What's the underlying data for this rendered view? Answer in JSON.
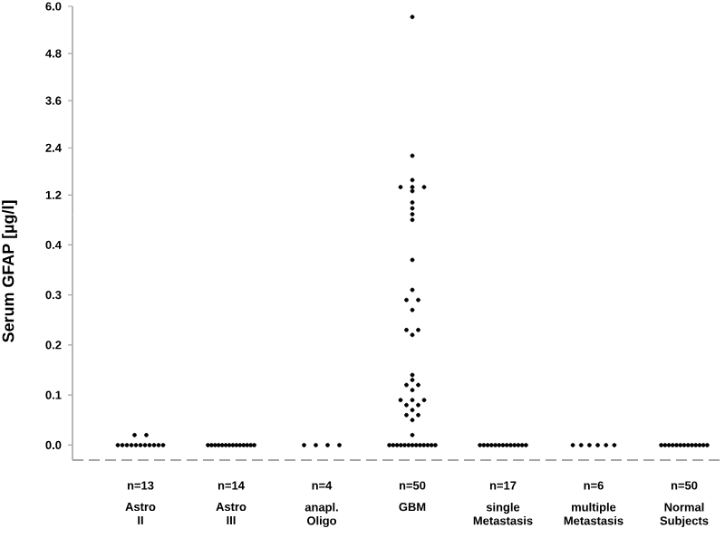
{
  "chart_data": [
    {
      "type": "scatter",
      "categories": [
        "Astro II",
        "Astro III",
        "anapl. Oligo",
        "GBM",
        "single Metastasis",
        "multiple Metastasis",
        "Normal Subjects"
      ],
      "ylim": [
        0.7,
        6.0
      ],
      "yticks": [
        {
          "value": 1.2,
          "label": "1.2"
        },
        {
          "value": 2.4,
          "label": "2.4"
        },
        {
          "value": 3.6,
          "label": "3.6"
        },
        {
          "value": 4.8,
          "label": "4.8"
        },
        {
          "value": 6.0,
          "label": "6.0"
        }
      ],
      "tick_labels": "y",
      "series": [
        {
          "color": "#000000",
          "x": [
            "GBM",
            "GBM",
            "GBM",
            "GBM",
            "GBM",
            "GBM",
            "GBM",
            "GBM",
            "GBM",
            "GBM"
          ],
          "values": [
            5.73,
            2.2,
            1.58,
            1.4,
            1.4,
            1.4,
            1.3,
            1.01,
            0.86,
            0.71
          ]
        }
      ]
    },
    {
      "type": "scatter",
      "categories": [
        "Astro II",
        "Astro III",
        "anapl. Oligo",
        "GBM",
        "single Metastasis",
        "multiple Metastasis",
        "Normal Subjects"
      ],
      "ylim": [
        -0.03,
        0.46
      ],
      "yticks": [
        {
          "value": 0,
          "label": "0.0"
        },
        0.1,
        0.2,
        0.3,
        0.4
      ],
      "ylabel": "Serum GFAP [µg/l]",
      "annotations": [
        "n=13",
        "n=14",
        "n=4",
        "n=50",
        "n=17",
        "n=6",
        "n=50"
      ],
      "series": [
        {
          "color": "#000000",
          "x": [
            "Astro II",
            "Astro II",
            "Astro II",
            "Astro II",
            "Astro II",
            "Astro II",
            "Astro II",
            "Astro II",
            "Astro II",
            "Astro II",
            "Astro II",
            "Astro II",
            "Astro II"
          ],
          "values": [
            0.02,
            0.02,
            0,
            0,
            0,
            0,
            0,
            0,
            0,
            0,
            0,
            0,
            0
          ]
        },
        {
          "color": "#000000",
          "x": [
            "Astro III",
            "Astro III",
            "Astro III",
            "Astro III",
            "Astro III",
            "Astro III",
            "Astro III",
            "Astro III",
            "Astro III",
            "Astro III",
            "Astro III",
            "Astro III",
            "Astro III",
            "Astro III"
          ],
          "values": [
            0,
            0,
            0,
            0,
            0,
            0,
            0,
            0,
            0,
            0,
            0,
            0,
            0,
            0
          ]
        },
        {
          "color": "#000000",
          "x": [
            "anapl. Oligo",
            "anapl. Oligo",
            "anapl. Oligo",
            "anapl. Oligo"
          ],
          "values": [
            0,
            0,
            0,
            0
          ]
        },
        {
          "color": "#000000",
          "x": [
            "GBM",
            "GBM",
            "GBM",
            "GBM",
            "GBM",
            "GBM",
            "GBM",
            "GBM",
            "GBM",
            "GBM",
            "GBM",
            "GBM",
            "GBM",
            "GBM",
            "GBM",
            "GBM",
            "GBM",
            "GBM",
            "GBM",
            "GBM",
            "GBM",
            "GBM",
            "GBM",
            "GBM",
            "GBM",
            "GBM",
            "GBM",
            "GBM",
            "GBM",
            "GBM",
            "GBM",
            "GBM",
            "GBM",
            "GBM",
            "GBM",
            "GBM",
            "GBM"
          ],
          "values": [
            0.45,
            0.37,
            0.31,
            0.29,
            0.29,
            0.27,
            0.23,
            0.23,
            0.22,
            0.14,
            0.13,
            0.12,
            0.12,
            0.11,
            0.09,
            0.09,
            0.09,
            0.08,
            0.08,
            0.07,
            0.06,
            0.06,
            0.05,
            0.02,
            0,
            0,
            0,
            0,
            0,
            0,
            0,
            0,
            0,
            0,
            0,
            0,
            0
          ]
        },
        {
          "color": "#000000",
          "x": [
            "single Metastasis",
            "single Metastasis",
            "single Metastasis",
            "single Metastasis",
            "single Metastasis",
            "single Metastasis",
            "single Metastasis",
            "single Metastasis",
            "single Metastasis",
            "single Metastasis",
            "single Metastasis",
            "single Metastasis",
            "single Metastasis"
          ],
          "values": [
            0,
            0,
            0,
            0,
            0,
            0,
            0,
            0,
            0,
            0,
            0,
            0,
            0
          ]
        },
        {
          "color": "#000000",
          "x": [
            "multiple Metastasis",
            "multiple Metastasis",
            "multiple Metastasis",
            "multiple Metastasis",
            "multiple Metastasis",
            "multiple Metastasis"
          ],
          "values": [
            0,
            0,
            0,
            0,
            0,
            0
          ]
        },
        {
          "color": "#000000",
          "x": [
            "Normal Subjects",
            "Normal Subjects",
            "Normal Subjects",
            "Normal Subjects",
            "Normal Subjects",
            "Normal Subjects",
            "Normal Subjects",
            "Normal Subjects",
            "Normal Subjects",
            "Normal Subjects",
            "Normal Subjects",
            "Normal Subjects",
            "Normal Subjects"
          ],
          "values": [
            0,
            0,
            0,
            0,
            0,
            0,
            0,
            0,
            0,
            0,
            0,
            0,
            0
          ]
        }
      ]
    }
  ]
}
